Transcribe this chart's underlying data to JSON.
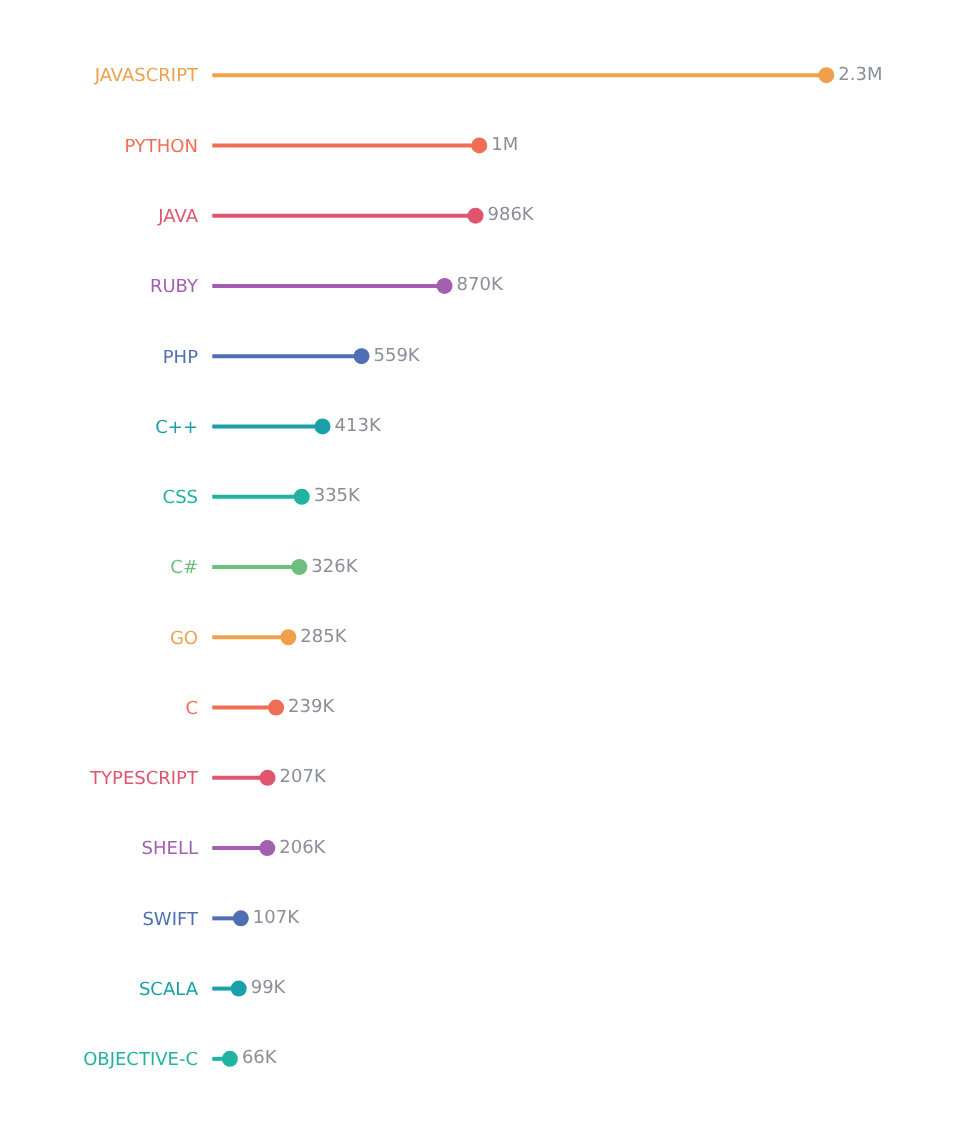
{
  "chart_data": {
    "type": "lollipop",
    "orientation": "horizontal",
    "categories": [
      "JAVASCRIPT",
      "PYTHON",
      "JAVA",
      "RUBY",
      "PHP",
      "C++",
      "CSS",
      "C#",
      "GO",
      "C",
      "TYPESCRIPT",
      "SHELL",
      "SWIFT",
      "SCALA",
      "OBJECTIVE-C"
    ],
    "values": [
      2300000,
      1000000,
      986000,
      870000,
      559000,
      413000,
      335000,
      326000,
      285000,
      239000,
      207000,
      206000,
      107000,
      99000,
      66000
    ],
    "value_labels": [
      "2.3M",
      "1M",
      "986K",
      "870K",
      "559K",
      "413K",
      "335K",
      "326K",
      "285K",
      "239K",
      "207K",
      "206K",
      "107K",
      "99K",
      "66K"
    ],
    "colors": [
      "#f0a04b",
      "#ef6f56",
      "#e0546e",
      "#a25fb0",
      "#4f6fb5",
      "#1aa0a8",
      "#20b3a0",
      "#6cbf7c",
      "#f0a04b",
      "#ef6f56",
      "#e0546e",
      "#a25fb0",
      "#4f6fb5",
      "#1aa0a8",
      "#20b3a0"
    ],
    "marker": "circle"
  }
}
